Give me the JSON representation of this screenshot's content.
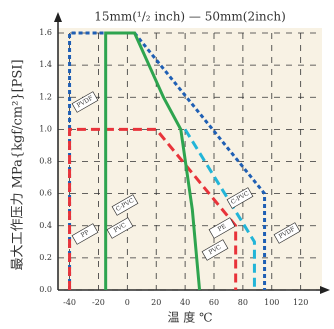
{
  "chart_data": {
    "type": "line",
    "title": "15mm(¹/₂ inch) — 50mm(2inch)",
    "x_label": "温 度 ℃",
    "y_label": "最大工作压力 MPa{kgf/cm²}[PSI]",
    "xlim": [
      -48,
      132
    ],
    "ylim": [
      0,
      1.6
    ],
    "xticks": [
      -40,
      -20,
      0,
      20,
      40,
      60,
      80,
      100,
      120
    ],
    "yticks": [
      {
        "value": 0,
        "label": "0.0"
      },
      0.2,
      0.4,
      0.6,
      0.8,
      {
        "value": 1,
        "label": "1.0"
      },
      1.2,
      1.4,
      1.6
    ],
    "grid": true,
    "series": [
      {
        "color": "#1f5fb4",
        "style": "dotted",
        "x": [
          -40,
          -40,
          5,
          95,
          95
        ],
        "values": [
          0,
          1.6,
          1.6,
          0.6,
          0
        ]
      },
      {
        "color": "#e8333a",
        "style": "dashed",
        "x": [
          -40,
          -40,
          20,
          75,
          75
        ],
        "values": [
          0,
          1.0,
          1.0,
          0.4,
          0
        ]
      },
      {
        "color": "#22b5d8",
        "style": "dashed",
        "x": [
          40,
          88,
          88
        ],
        "values": [
          1.0,
          0.3,
          0
        ]
      },
      {
        "color": "#2ea44f",
        "style": "solid",
        "x": [
          -15,
          -15,
          5,
          25,
          37,
          45,
          50
        ],
        "values": [
          0,
          1.6,
          1.6,
          1.2,
          1.0,
          0.5,
          0
        ]
      }
    ],
    "annotations": [
      "PVDF",
      "C-PVC",
      "PVC",
      "PP",
      "PE",
      "PVC",
      "C-PVC",
      "PVDF"
    ]
  }
}
